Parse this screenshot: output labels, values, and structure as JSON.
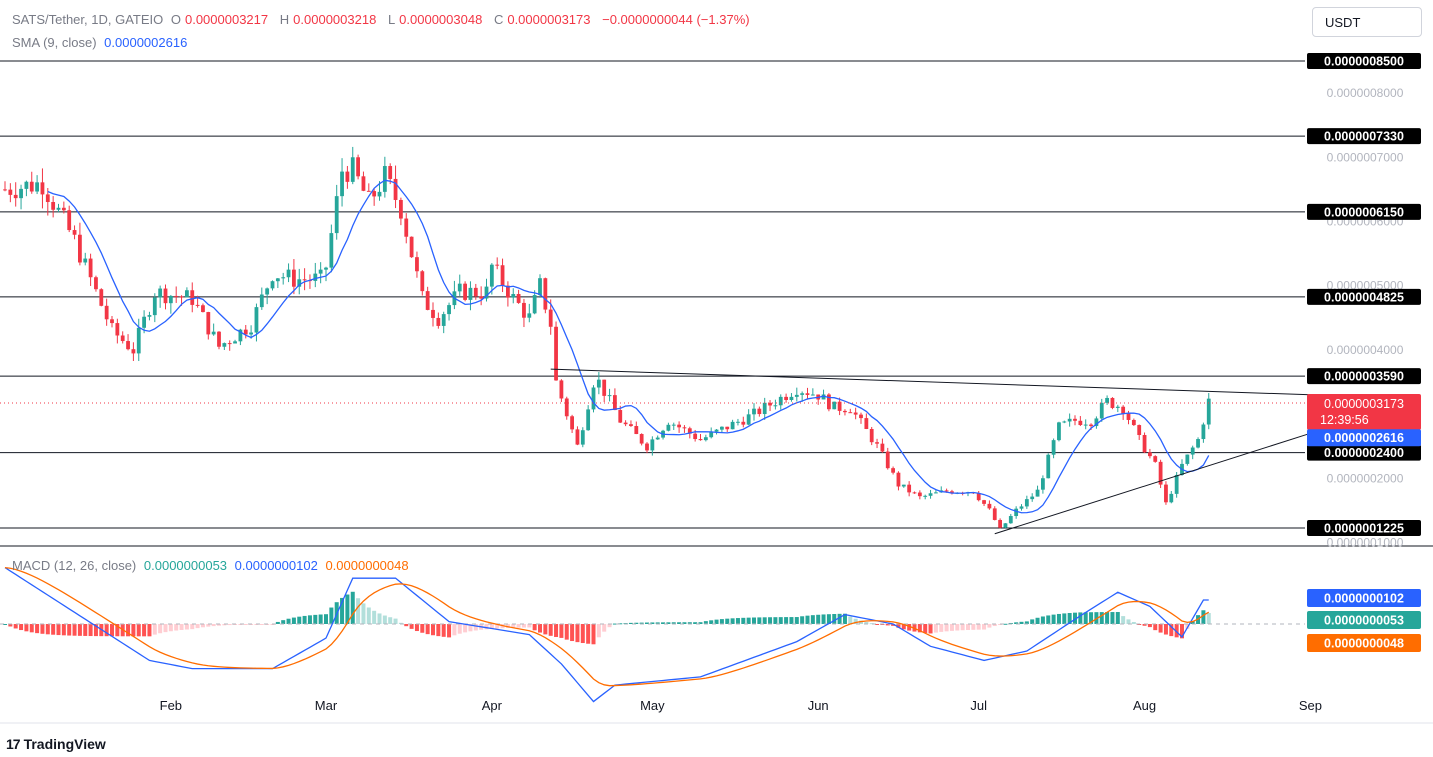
{
  "header": {
    "symbol": "SATS/Tether, 1D, GATEIO",
    "open_label": "O",
    "open": "0.0000003217",
    "high_label": "H",
    "high": "0.0000003218",
    "low_label": "L",
    "low": "0.0000003048",
    "close_label": "C",
    "close": "0.0000003173",
    "change": "−0.0000000044 (−1.37%)",
    "sma_label": "SMA (9, close)",
    "sma_value": "0.0000002616",
    "currency_button": "USDT"
  },
  "macd_legend": {
    "label": "MACD (12, 26, close)",
    "histogram": "0.0000000053",
    "macd": "0.0000000102",
    "signal": "0.0000000048"
  },
  "footer": {
    "logo": "17",
    "brand": "TradingView"
  },
  "colors": {
    "up": "#26a69a",
    "down": "#f23645",
    "sma": "#2962ff",
    "signal": "#ff6d00",
    "hist_up": "#26a69a",
    "hist_up_light": "#b2dfdb",
    "hist_down": "#ff5252",
    "hist_down_light": "#ffcdd2"
  },
  "chart_data": {
    "type": "candlestick",
    "symbol": "SATS/Tether",
    "timeframe": "1D",
    "x_tick_labels": [
      "Feb",
      "Mar",
      "Apr",
      "May",
      "Jun",
      "Jul",
      "Aug",
      "Sep"
    ],
    "price_axis_labels": [
      "0.0000008000",
      "0.0000007000",
      "0.0000006000",
      "0.0000005000",
      "0.0000004000",
      "0.0000002000",
      "0.0000001000"
    ],
    "price_range": [
      9e-08,
      8.6e-07
    ],
    "horizontal_levels": [
      {
        "label": "0.0000008500",
        "value": 8.5e-07
      },
      {
        "label": "0.0000007330",
        "value": 7.33e-07
      },
      {
        "label": "0.0000006150",
        "value": 6.15e-07
      },
      {
        "label": "0.0000004825",
        "value": 4.825e-07
      },
      {
        "label": "0.0000003590",
        "value": 3.59e-07
      },
      {
        "label": "0.0000002400",
        "value": 2.4e-07
      },
      {
        "label": "0.0000001225",
        "value": 1.225e-07
      }
    ],
    "current_price": {
      "label": "0.0000003173",
      "value": 3.173e-07,
      "countdown": "12:39:56"
    },
    "sma_price": {
      "label": "0.0000002616",
      "value": 2.616e-07
    },
    "trendlines": [
      {
        "name": "descending",
        "from": [
          "2024-04-12",
          3.7e-07
        ],
        "to": [
          "2024-09-01",
          3.3e-07
        ]
      },
      {
        "name": "ascending",
        "from": [
          "2024-07-04",
          1.135e-07
        ],
        "to": [
          "2024-09-01",
          2.7e-07
        ]
      }
    ],
    "price_anchors": [
      [
        "2024-01-01",
        6.5e-07
      ],
      [
        "2024-01-08",
        6.6e-07
      ],
      [
        "2024-01-14",
        5.7e-07
      ],
      [
        "2024-01-21",
        4.3e-07
      ],
      [
        "2024-01-25",
        4e-07
      ],
      [
        "2024-01-29",
        4.9e-07
      ],
      [
        "2024-02-05",
        4.8e-07
      ],
      [
        "2024-02-10",
        4.05e-07
      ],
      [
        "2024-02-16",
        4.4e-07
      ],
      [
        "2024-02-20",
        5.2e-07
      ],
      [
        "2024-02-24",
        5.1e-07
      ],
      [
        "2024-02-29",
        5.1e-07
      ],
      [
        "2024-03-01",
        5.3e-07
      ],
      [
        "2024-03-04",
        6.8e-07
      ],
      [
        "2024-03-06",
        6.8e-07
      ],
      [
        "2024-03-09",
        6.3e-07
      ],
      [
        "2024-03-12",
        6.7e-07
      ],
      [
        "2024-03-15",
        6.2e-07
      ],
      [
        "2024-03-19",
        4.8e-07
      ],
      [
        "2024-03-22",
        4.5e-07
      ],
      [
        "2024-03-26",
        4.9e-07
      ],
      [
        "2024-03-31",
        4.9e-07
      ],
      [
        "2024-04-01",
        5.3e-07
      ],
      [
        "2024-04-05",
        4.8e-07
      ],
      [
        "2024-04-08",
        4.5e-07
      ],
      [
        "2024-04-10",
        5e-07
      ],
      [
        "2024-04-12",
        4.4e-07
      ],
      [
        "2024-04-13",
        3.5e-07
      ],
      [
        "2024-04-17",
        2.5e-07
      ],
      [
        "2024-04-20",
        3.5e-07
      ],
      [
        "2024-04-21",
        3.5e-07
      ],
      [
        "2024-04-25",
        2.9e-07
      ],
      [
        "2024-04-30",
        2.5e-07
      ],
      [
        "2024-05-04",
        2.9e-07
      ],
      [
        "2024-05-10",
        2.6e-07
      ],
      [
        "2024-05-15",
        2.8e-07
      ],
      [
        "2024-05-20",
        3e-07
      ],
      [
        "2024-05-24",
        3.2e-07
      ],
      [
        "2024-05-28",
        3.4e-07
      ],
      [
        "2024-06-01",
        3.3e-07
      ],
      [
        "2024-06-04",
        3.1e-07
      ],
      [
        "2024-06-07",
        3.1e-07
      ],
      [
        "2024-06-12",
        2.5e-07
      ],
      [
        "2024-06-16",
        1.9e-07
      ],
      [
        "2024-06-20",
        1.7e-07
      ],
      [
        "2024-06-25",
        1.8e-07
      ],
      [
        "2024-06-30",
        1.8e-07
      ],
      [
        "2024-07-03",
        1.5e-07
      ],
      [
        "2024-07-05",
        1.2e-07
      ],
      [
        "2024-07-08",
        1.5e-07
      ],
      [
        "2024-07-12",
        1.8e-07
      ],
      [
        "2024-07-16",
        2.8e-07
      ],
      [
        "2024-07-19",
        2.9e-07
      ],
      [
        "2024-07-22",
        2.9e-07
      ],
      [
        "2024-07-25",
        3.2e-07
      ],
      [
        "2024-07-28",
        3.1e-07
      ],
      [
        "2024-07-31",
        2.6e-07
      ],
      [
        "2024-08-03",
        2.2e-07
      ],
      [
        "2024-08-05",
        1.6e-07
      ],
      [
        "2024-08-08",
        2.2e-07
      ],
      [
        "2024-08-11",
        2.6e-07
      ],
      [
        "2024-08-13",
        3.2e-07
      ]
    ],
    "macd_axis_labels": [
      "0.0000000102",
      "0.0000000053",
      "0.0000000048"
    ],
    "macd_range": [
      -3.3e-08,
      2.4e-08
    ],
    "macd_anchors": [
      [
        "2024-01-01",
        2.4e-08
      ],
      [
        "2024-01-15",
        3.5e-09
      ],
      [
        "2024-01-28",
        -1.55e-08
      ],
      [
        "2024-02-05",
        -1.9e-08
      ],
      [
        "2024-02-20",
        -1.9e-08
      ],
      [
        "2024-03-01",
        -6e-09
      ],
      [
        "2024-03-06",
        1.95e-08
      ],
      [
        "2024-03-14",
        1.95e-08
      ],
      [
        "2024-03-24",
        1e-09
      ],
      [
        "2024-04-08",
        -4.5e-09
      ],
      [
        "2024-04-14",
        -1.7e-08
      ],
      [
        "2024-04-20",
        -3.3e-08
      ],
      [
        "2024-04-24",
        -2.6e-08
      ],
      [
        "2024-05-10",
        -2.25e-08
      ],
      [
        "2024-05-28",
        -7.5e-09
      ],
      [
        "2024-06-06",
        4e-09
      ],
      [
        "2024-06-15",
        0.0
      ],
      [
        "2024-06-22",
        -9.5e-09
      ],
      [
        "2024-07-02",
        -1.55e-08
      ],
      [
        "2024-07-10",
        -1.15e-08
      ],
      [
        "2024-07-20",
        3.5e-09
      ],
      [
        "2024-07-27",
        1.35e-08
      ],
      [
        "2024-08-02",
        7.5e-09
      ],
      [
        "2024-08-08",
        -5.5e-09
      ],
      [
        "2024-08-12",
        1.02e-08
      ]
    ]
  }
}
